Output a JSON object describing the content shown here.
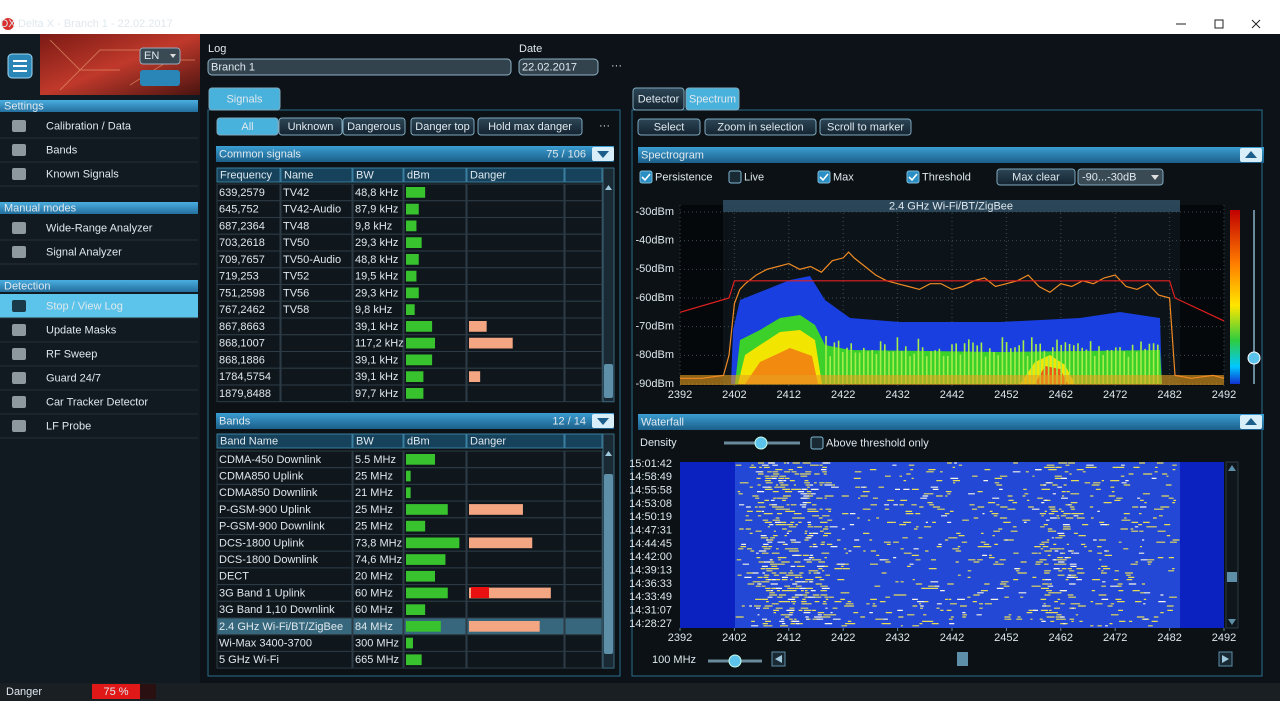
{
  "window": {
    "title": "Delta X - Branch 1 - 22.02.2017",
    "app_icon": "DX"
  },
  "sidebar": {
    "language": "EN",
    "sections": [
      {
        "title": "Settings",
        "items": [
          {
            "label": "Calibration / Data"
          },
          {
            "label": "Bands"
          },
          {
            "label": "Known Signals"
          }
        ]
      },
      {
        "title": "Manual modes",
        "items": [
          {
            "label": "Wide-Range Analyzer"
          },
          {
            "label": "Signal Analyzer"
          }
        ]
      },
      {
        "title": "Detection",
        "items": [
          {
            "label": "Stop / View Log",
            "selected": true
          },
          {
            "label": "Update Masks"
          },
          {
            "label": "RF Sweep"
          },
          {
            "label": "Guard 24/7"
          },
          {
            "label": "Car Tracker Detector"
          },
          {
            "label": "LF Probe"
          }
        ]
      }
    ]
  },
  "header": {
    "log_label": "Log",
    "log_value": "Branch 1",
    "date_label": "Date",
    "date_value": "22.02.2017",
    "menu": "···"
  },
  "signals_panel": {
    "tab": "Signals",
    "filters": [
      {
        "label": "All",
        "selected": true
      },
      {
        "label": "Unknown"
      },
      {
        "label": "Dangerous"
      }
    ],
    "buttons": [
      "Danger top",
      "Hold max danger"
    ],
    "menu": "···",
    "common_signals": {
      "title": "Common signals",
      "count": "75 / 106",
      "columns": [
        "Frequency",
        "Name",
        "BW",
        "dBm",
        "Danger"
      ],
      "rows": [
        {
          "frequency": "639,2579",
          "name": "TV42",
          "bw": "48,8 kHz",
          "dbm_level": 33,
          "danger_level": 0
        },
        {
          "frequency": "645,752",
          "name": "TV42-Audio",
          "bw": "87,9 kHz",
          "dbm_level": 22,
          "danger_level": 0
        },
        {
          "frequency": "687,2364",
          "name": "TV48",
          "bw": "9,8 kHz",
          "dbm_level": 18,
          "danger_level": 0
        },
        {
          "frequency": "703,2618",
          "name": "TV50",
          "bw": "29,3 kHz",
          "dbm_level": 27,
          "danger_level": 0
        },
        {
          "frequency": "709,7657",
          "name": "TV50-Audio",
          "bw": "48,8 kHz",
          "dbm_level": 22,
          "danger_level": 0
        },
        {
          "frequency": "719,253",
          "name": "TV52",
          "bw": "19,5 kHz",
          "dbm_level": 18,
          "danger_level": 0
        },
        {
          "frequency": "751,2598",
          "name": "TV56",
          "bw": "29,3 kHz",
          "dbm_level": 22,
          "danger_level": 0
        },
        {
          "frequency": "767,2462",
          "name": "TV58",
          "bw": "9,8 kHz",
          "dbm_level": 15,
          "danger_level": 0
        },
        {
          "frequency": "867,8663",
          "name": null,
          "bw": "39,1 kHz",
          "dbm_level": 45,
          "danger_level": 19
        },
        {
          "frequency": "868,1007",
          "name": null,
          "bw": "117,2 kHz",
          "dbm_level": 50,
          "danger_level": 47
        },
        {
          "frequency": "868,1886",
          "name": null,
          "bw": "39,1 kHz",
          "dbm_level": 45,
          "danger_level": 0
        },
        {
          "frequency": "1784,5754",
          "name": null,
          "bw": "39,1 kHz",
          "dbm_level": 30,
          "danger_level": 12
        },
        {
          "frequency": "1879,8488",
          "name": null,
          "bw": "97,7 kHz",
          "dbm_level": 30,
          "danger_level": 0
        }
      ]
    },
    "bands": {
      "title": "Bands",
      "count": "12 / 14",
      "columns": [
        "Band Name",
        "BW",
        "dBm",
        "Danger"
      ],
      "rows": [
        {
          "name": "CDMA-450 Downlink",
          "bw": "5.5 MHz",
          "dbm_level": 50,
          "danger_level": 0
        },
        {
          "name": "CDMA850 Uplink",
          "bw": "25 MHz",
          "dbm_level": 8,
          "danger_level": 0
        },
        {
          "name": "CDMA850 Downlink",
          "bw": "21 MHz",
          "dbm_level": 8,
          "danger_level": 0
        },
        {
          "name": "P-GSM-900 Uplink",
          "bw": "25 MHz",
          "dbm_level": 72,
          "danger_level": 58
        },
        {
          "name": "P-GSM-900 Downlink",
          "bw": "25 MHz",
          "dbm_level": 33,
          "danger_level": 0
        },
        {
          "name": "DCS-1800 Uplink",
          "bw": "73,8 MHz",
          "dbm_level": 92,
          "danger_level": 68
        },
        {
          "name": "DCS-1800 Downlink",
          "bw": "74,6 MHz",
          "dbm_level": 68,
          "danger_level": 0
        },
        {
          "name": "DECT",
          "bw": "20 MHz",
          "dbm_level": 50,
          "danger_level": 0
        },
        {
          "name": "3G Band 1 Uplink",
          "bw": "60 MHz",
          "dbm_level": 72,
          "danger_level": 88
        },
        {
          "name": "3G Band 1,10 Downlink",
          "bw": "60 MHz",
          "dbm_level": 33,
          "danger_level": 0
        },
        {
          "name": "2.4 GHz Wi-Fi/BT/ZigBee",
          "bw": "84 MHz",
          "dbm_level": 60,
          "danger_level": 76,
          "selected": true
        },
        {
          "name": "Wi-Max 3400-3700",
          "bw": "300 MHz",
          "dbm_level": 12,
          "danger_level": 0
        },
        {
          "name": "5 GHz Wi-Fi",
          "bw": "665 MHz",
          "dbm_level": 27,
          "danger_level": 0
        }
      ]
    }
  },
  "spectrum_panel": {
    "tabs": [
      {
        "label": "Detector"
      },
      {
        "label": "Spectrum",
        "selected": true
      }
    ],
    "buttons": [
      "Select",
      "Zoom in selection",
      "Scroll to marker"
    ],
    "spectrogram": {
      "title": "Spectrogram",
      "options": [
        {
          "label": "Persistence",
          "checked": true,
          "color": "#ffffff"
        },
        {
          "label": "Live",
          "checked": false,
          "color": "#2ecc40"
        }
      ],
      "button": "Max clear",
      "range_select": "-90...-30dB",
      "chart": {
        "type": "line",
        "band_label": "2.4 GHz Wi-Fi/BT/ZigBee",
        "xlim": [
          2392,
          2492
        ],
        "xticks": [
          2392,
          2402,
          2412,
          2422,
          2432,
          2442,
          2452,
          2462,
          2472,
          2482,
          2492
        ],
        "ylim": [
          -90,
          -28
        ],
        "yticks": [
          {
            "value": -30,
            "label": "-30dBm"
          },
          {
            "value": -40,
            "label": "-40dBm"
          },
          {
            "value": -50,
            "label": "-50dBm"
          },
          {
            "value": -60,
            "label": "-60dBm"
          },
          {
            "value": -70,
            "label": "-70dBm"
          },
          {
            "value": -80,
            "label": "-80dBm"
          },
          {
            "value": -90,
            "label": "-90dBm"
          }
        ],
        "grid": true,
        "series": [
          {
            "name": "Max",
            "color": "#f08a24",
            "checked": true,
            "x": [
              2392,
              2396,
              2400,
              2401,
              2402,
              2403,
              2404,
              2406,
              2408,
              2410,
              2412,
              2414,
              2416,
              2418,
              2420,
              2422,
              2423,
              2424,
              2426,
              2428,
              2430,
              2432,
              2434,
              2436,
              2438,
              2440,
              2442,
              2444,
              2446,
              2448,
              2450,
              2452,
              2454,
              2456,
              2458,
              2460,
              2462,
              2464,
              2466,
              2468,
              2470,
              2472,
              2474,
              2476,
              2478,
              2480,
              2482,
              2483,
              2486,
              2490,
              2492
            ],
            "values": [
              -88,
              -88,
              -87,
              -80,
              -62,
              -57,
              -55,
              -52,
              -50,
              -49,
              -48,
              -50,
              -49,
              -51,
              -47,
              -46,
              -44,
              -46,
              -49,
              -52,
              -54,
              -55,
              -56,
              -57,
              -55,
              -55,
              -57,
              -56,
              -54,
              -53,
              -56,
              -55,
              -54,
              -52,
              -56,
              -58,
              -55,
              -56,
              -54,
              -55,
              -53,
              -52,
              -56,
              -57,
              -55,
              -59,
              -60,
              -87,
              -88,
              -87,
              -88
            ]
          },
          {
            "name": "Threshold",
            "color": "#e02020",
            "checked": true,
            "x": [
              2392,
              2401,
              2402,
              2482,
              2483,
              2492
            ],
            "values": [
              -65,
              -60,
              -54,
              -54,
              -60,
              -68
            ]
          }
        ]
      }
    },
    "waterfall": {
      "title": "Waterfall",
      "density_label": "Density",
      "option": {
        "label": "Above threshold only",
        "checked": false
      },
      "time_labels": [
        "15:01:42",
        "14:58:49",
        "14:55:58",
        "14:53:08",
        "14:50:19",
        "14:47:31",
        "14:44:45",
        "14:42:00",
        "14:39:13",
        "14:36:33",
        "14:33:49",
        "14:31:07",
        "14:28:27"
      ],
      "xlim": [
        2392,
        2492
      ],
      "xticks": [
        2392,
        2402,
        2412,
        2422,
        2432,
        2442,
        2452,
        2462,
        2472,
        2482,
        2492
      ],
      "span_label": "100 MHz"
    }
  },
  "status": {
    "label": "Danger",
    "value": 75,
    "value_label": "75 %"
  }
}
